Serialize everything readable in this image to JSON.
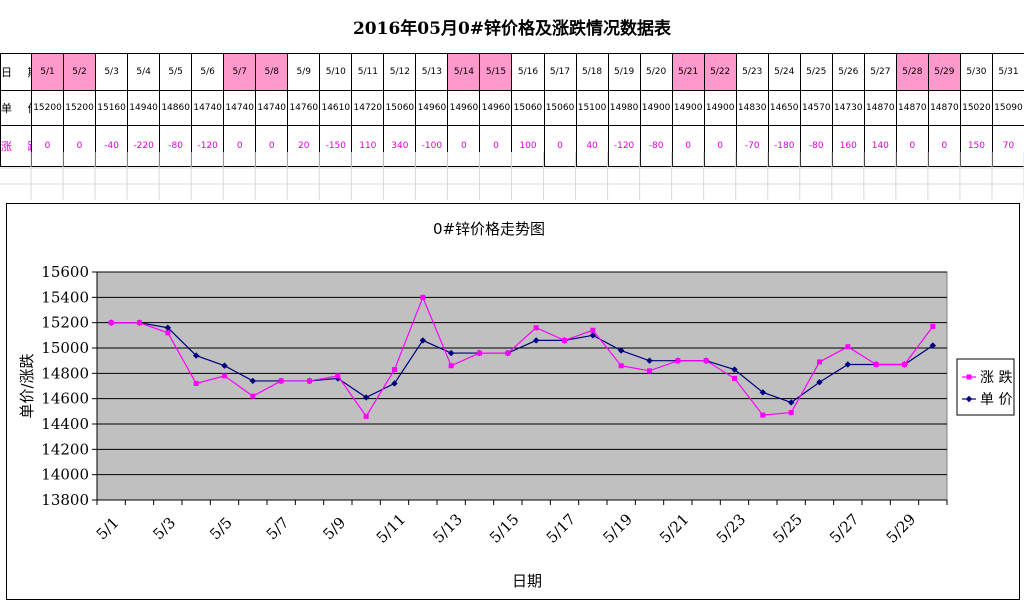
{
  "page": {
    "title": "2016年05月0#锌价格及涨跌情况数据表"
  },
  "table": {
    "row_labels": {
      "date": "日 期",
      "price": "单 价",
      "change": "涨 跌"
    },
    "dates": [
      "5/1",
      "5/2",
      "5/3",
      "5/4",
      "5/5",
      "5/6",
      "5/7",
      "5/8",
      "5/9",
      "5/10",
      "5/11",
      "5/12",
      "5/13",
      "5/14",
      "5/15",
      "5/16",
      "5/17",
      "5/18",
      "5/19",
      "5/20",
      "5/21",
      "5/22",
      "5/23",
      "5/24",
      "5/25",
      "5/26",
      "5/27",
      "5/28",
      "5/29",
      "5/30",
      "5/31"
    ],
    "prices": [
      "15200",
      "15200",
      "15160",
      "14940",
      "14860",
      "14740",
      "14740",
      "14740",
      "14760",
      "14610",
      "14720",
      "15060",
      "14960",
      "14960",
      "14960",
      "15060",
      "15060",
      "15100",
      "14980",
      "14900",
      "14900",
      "14900",
      "14830",
      "14650",
      "14570",
      "14730",
      "14870",
      "14870",
      "14870",
      "15020",
      "15090"
    ],
    "changes": [
      "0",
      "0",
      "-40",
      "-220",
      "-80",
      "-120",
      "0",
      "0",
      "20",
      "-150",
      "110",
      "340",
      "-100",
      "0",
      "0",
      "100",
      "0",
      "40",
      "-120",
      "-80",
      "0",
      "0",
      "-70",
      "-180",
      "-80",
      "160",
      "140",
      "0",
      "0",
      "150",
      "70"
    ],
    "highlighted": [
      "5/1",
      "5/2",
      "5/7",
      "5/8",
      "5/14",
      "5/15",
      "5/21",
      "5/22",
      "5/28",
      "5/29"
    ],
    "highlight_color": "#ff99cc",
    "change_text_color": "#e000e0"
  },
  "chart_data": {
    "type": "line",
    "title": "0#锌价格走势图",
    "xlabel": "日期",
    "ylabel": "单价/涨跌",
    "categories": [
      "5/1",
      "5/2",
      "5/3",
      "5/4",
      "5/5",
      "5/6",
      "5/7",
      "5/8",
      "5/9",
      "5/10",
      "5/11",
      "5/12",
      "5/13",
      "5/14",
      "5/15",
      "5/16",
      "5/17",
      "5/18",
      "5/19",
      "5/20",
      "5/21",
      "5/22",
      "5/23",
      "5/24",
      "5/25",
      "5/26",
      "5/27",
      "5/28",
      "5/29",
      "5/30"
    ],
    "x_tick_labels": [
      "5/1",
      "5/3",
      "5/5",
      "5/7",
      "5/9",
      "5/11",
      "5/13",
      "5/15",
      "5/17",
      "5/19",
      "5/21",
      "5/23",
      "5/25",
      "5/27",
      "5/29"
    ],
    "ylim": [
      13800,
      15600
    ],
    "y_ticks": [
      13800,
      14000,
      14200,
      14400,
      14600,
      14800,
      15000,
      15200,
      15400,
      15600
    ],
    "grid": true,
    "plot_background": "#c0c0c0",
    "legend_position": "right",
    "series": [
      {
        "name": "涨 跌",
        "color": "#ff00ff",
        "marker": "square",
        "values": [
          15200,
          15200,
          15120,
          14720,
          14780,
          14620,
          14740,
          14740,
          14780,
          14460,
          14830,
          15400,
          14860,
          14960,
          14960,
          15160,
          15060,
          15140,
          14860,
          14820,
          14900,
          14900,
          14760,
          14470,
          14490,
          14890,
          15010,
          14870,
          14870,
          15170
        ]
      },
      {
        "name": "单 价",
        "color": "#000080",
        "marker": "diamond",
        "values": [
          15200,
          15200,
          15160,
          14940,
          14860,
          14740,
          14740,
          14740,
          14760,
          14610,
          14720,
          15060,
          14960,
          14960,
          14960,
          15060,
          15060,
          15100,
          14980,
          14900,
          14900,
          14900,
          14830,
          14650,
          14570,
          14730,
          14870,
          14870,
          14870,
          15020
        ]
      }
    ]
  }
}
